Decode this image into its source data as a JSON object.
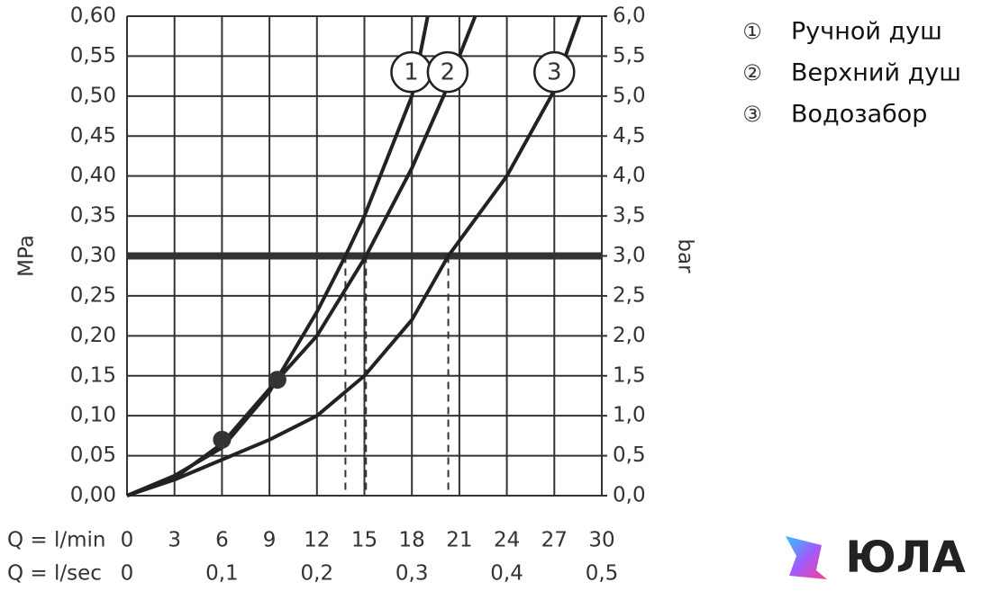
{
  "chart_data": {
    "type": "line",
    "x_label": "Q = l/min",
    "x2_label": "Q = l/sec",
    "y_label": "MPa",
    "y2_label": "bar",
    "xlim": [
      0,
      30
    ],
    "xticks": [
      0,
      3,
      6,
      9,
      12,
      15,
      18,
      21,
      24,
      27,
      30
    ],
    "x2lim": [
      0,
      0.5
    ],
    "x2ticks": [
      0,
      {
        "value": 0.1,
        "label": "0,1"
      },
      {
        "value": 0.2,
        "label": "0,2"
      },
      {
        "value": 0.3,
        "label": "0,3"
      },
      {
        "value": 0.4,
        "label": "0,4"
      },
      {
        "value": 0.5,
        "label": "0,5"
      }
    ],
    "ylim": [
      0,
      0.6
    ],
    "yticks": [
      {
        "value": 0,
        "label": "0,00"
      },
      {
        "value": 0.05,
        "label": "0,05"
      },
      {
        "value": 0.1,
        "label": "0,10"
      },
      {
        "value": 0.15,
        "label": "0,15"
      },
      {
        "value": 0.2,
        "label": "0,20"
      },
      {
        "value": 0.25,
        "label": "0,25"
      },
      {
        "value": 0.3,
        "label": "0,30"
      },
      {
        "value": 0.35,
        "label": "0,35"
      },
      {
        "value": 0.4,
        "label": "0,40"
      },
      {
        "value": 0.45,
        "label": "0,45"
      },
      {
        "value": 0.5,
        "label": "0,50"
      },
      {
        "value": 0.55,
        "label": "0,55"
      },
      {
        "value": 0.6,
        "label": "0,60"
      }
    ],
    "y2lim": [
      0,
      6
    ],
    "y2ticks": [
      {
        "value": 0,
        "label": "0,0"
      },
      {
        "value": 0.5,
        "label": "0,5"
      },
      {
        "value": 1,
        "label": "1,0"
      },
      {
        "value": 1.5,
        "label": "1,5"
      },
      {
        "value": 2,
        "label": "2,0"
      },
      {
        "value": 2.5,
        "label": "2,5"
      },
      {
        "value": 3,
        "label": "3,0"
      },
      {
        "value": 3.5,
        "label": "3,5"
      },
      {
        "value": 4,
        "label": "4,0"
      },
      {
        "value": 4.5,
        "label": "4,5"
      },
      {
        "value": 5,
        "label": "5,0"
      },
      {
        "value": 5.5,
        "label": "5,5"
      },
      {
        "value": 6,
        "label": "6,0"
      }
    ],
    "grid": true,
    "color": "#222222",
    "legend_position": "right",
    "hline": 0.3,
    "dashed_x": [
      13.8,
      15.1,
      20.3
    ],
    "points": {
      "x": [
        6,
        9.5
      ],
      "y": [
        0.07,
        0.145
      ]
    },
    "series": [
      {
        "name": "Ручной душ",
        "label": "1",
        "marker": "①",
        "x": [
          0,
          3,
          6,
          9,
          12,
          13.8,
          15,
          18,
          19
        ],
        "values": [
          0,
          0.025,
          0.06,
          0.13,
          0.23,
          0.3,
          0.35,
          0.5,
          0.6
        ]
      },
      {
        "name": "Верхний душ",
        "label": "2",
        "marker": "②",
        "x": [
          0,
          3,
          6,
          9.5,
          12,
          15.1,
          18,
          20,
          22
        ],
        "values": [
          0,
          0.022,
          0.065,
          0.145,
          0.2,
          0.3,
          0.41,
          0.5,
          0.6
        ]
      },
      {
        "name": "Водозабор",
        "label": "3",
        "marker": "③",
        "x": [
          0,
          3,
          6,
          9,
          12,
          15,
          18,
          20.3,
          24,
          26.8,
          28.6
        ],
        "values": [
          0,
          0.02,
          0.045,
          0.07,
          0.1,
          0.15,
          0.22,
          0.3,
          0.4,
          0.5,
          0.6
        ]
      }
    ],
    "logo": "ЮЛА"
  }
}
